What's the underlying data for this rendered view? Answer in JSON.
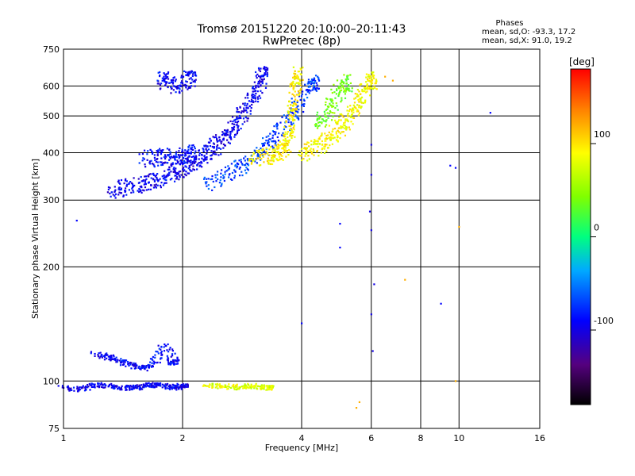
{
  "chart_data": {
    "type": "scatter",
    "title": "Tromsø 20151220 20:10:00–20:11:43",
    "subtitle": "RwPretec (8p)",
    "xlabel": "Frequency [MHz]",
    "ylabel": "Stationary phase Virtual Height [km]",
    "x_scale": "log",
    "y_scale": "log",
    "xlim": [
      1,
      16
    ],
    "ylim": [
      75,
      750
    ],
    "x_ticks": [
      1,
      2,
      4,
      6,
      8,
      10,
      16
    ],
    "x_tick_labels": [
      "1",
      "2",
      "4",
      "6",
      "8",
      "10",
      "16"
    ],
    "x_gridlines": [
      2,
      4,
      6,
      8,
      10
    ],
    "y_ticks": [
      75,
      100,
      200,
      300,
      400,
      500,
      600,
      750
    ],
    "y_tick_labels": [
      "75",
      "100",
      "200",
      "300",
      "400",
      "500",
      "600",
      "750"
    ],
    "y_gridlines": [
      100,
      200,
      300,
      400,
      500,
      600
    ],
    "grid": true,
    "stats": {
      "heading": "Phases",
      "o_line": "mean, sd,O:  -93.3, 17.2",
      "x_line": "mean, sd,X:  91.0, 19.2"
    },
    "colorbar": {
      "label": "[deg]",
      "range": [
        -180,
        180
      ],
      "ticks": [
        -100,
        0,
        100
      ],
      "tick_labels": [
        "-100",
        "0",
        "100"
      ]
    },
    "traces": [
      {
        "kind": "o-ray",
        "phase": -95,
        "points": [
          [
            1.3,
            320
          ],
          [
            1.4,
            322
          ],
          [
            1.5,
            326
          ],
          [
            1.6,
            330
          ],
          [
            1.7,
            336
          ],
          [
            1.8,
            345
          ],
          [
            1.9,
            356
          ],
          [
            2.0,
            362
          ],
          [
            2.1,
            372
          ],
          [
            2.2,
            385
          ],
          [
            2.3,
            398
          ],
          [
            2.4,
            412
          ],
          [
            2.5,
            428
          ],
          [
            2.6,
            446
          ],
          [
            2.7,
            468
          ],
          [
            2.8,
            495
          ],
          [
            2.9,
            525
          ],
          [
            3.0,
            560
          ],
          [
            3.1,
            600
          ],
          [
            3.2,
            640
          ]
        ]
      },
      {
        "kind": "o-ray",
        "phase": -90,
        "points": [
          [
            1.6,
            385
          ],
          [
            1.7,
            388
          ],
          [
            1.8,
            390
          ],
          [
            1.9,
            392
          ],
          [
            2.0,
            395
          ],
          [
            2.1,
            398
          ]
        ]
      },
      {
        "kind": "o-ray",
        "phase": -92,
        "points": [
          [
            1.75,
            640
          ],
          [
            1.8,
            620
          ],
          [
            1.9,
            600
          ],
          [
            2.0,
            610
          ],
          [
            2.1,
            630
          ]
        ]
      },
      {
        "kind": "o-ray-high",
        "phase": -70,
        "points": [
          [
            2.3,
            335
          ],
          [
            2.5,
            345
          ],
          [
            2.7,
            360
          ],
          [
            2.9,
            375
          ],
          [
            3.1,
            395
          ],
          [
            3.3,
            420
          ],
          [
            3.5,
            450
          ],
          [
            3.7,
            490
          ],
          [
            3.9,
            530
          ],
          [
            4.1,
            570
          ],
          [
            4.3,
            610
          ]
        ]
      },
      {
        "kind": "x-ray",
        "phase": 95,
        "points": [
          [
            3.0,
            385
          ],
          [
            3.2,
            390
          ],
          [
            3.4,
            395
          ],
          [
            3.5,
            400
          ],
          [
            3.6,
            410
          ],
          [
            3.7,
            430
          ],
          [
            3.75,
            470
          ],
          [
            3.8,
            520
          ],
          [
            3.85,
            580
          ],
          [
            3.9,
            640
          ]
        ]
      },
      {
        "kind": "x-ray",
        "phase": 90,
        "points": [
          [
            4.0,
            400
          ],
          [
            4.2,
            405
          ],
          [
            4.4,
            415
          ],
          [
            4.6,
            430
          ],
          [
            4.8,
            445
          ],
          [
            5.0,
            465
          ],
          [
            5.2,
            490
          ],
          [
            5.4,
            520
          ],
          [
            5.6,
            555
          ],
          [
            5.8,
            590
          ],
          [
            6.0,
            620
          ]
        ]
      },
      {
        "kind": "x-ray-mid",
        "phase": 40,
        "points": [
          [
            4.4,
            470
          ],
          [
            4.6,
            500
          ],
          [
            4.8,
            540
          ],
          [
            5.0,
            580
          ],
          [
            5.2,
            610
          ]
        ]
      },
      {
        "kind": "e-layer",
        "phase": -95,
        "points": [
          [
            1.0,
            96
          ],
          [
            1.1,
            95
          ],
          [
            1.2,
            98
          ],
          [
            1.3,
            97
          ],
          [
            1.4,
            96
          ],
          [
            1.5,
            96
          ],
          [
            1.6,
            97
          ],
          [
            1.7,
            98
          ],
          [
            1.8,
            97
          ],
          [
            1.9,
            96
          ],
          [
            2.0,
            97
          ]
        ]
      },
      {
        "kind": "e-layer",
        "phase": -90,
        "points": [
          [
            1.2,
            118
          ],
          [
            1.3,
            116
          ],
          [
            1.4,
            112
          ],
          [
            1.5,
            110
          ],
          [
            1.6,
            108
          ],
          [
            1.7,
            112
          ],
          [
            1.8,
            125
          ],
          [
            1.9,
            112
          ]
        ]
      },
      {
        "kind": "e-layer-x",
        "phase": 80,
        "points": [
          [
            2.3,
            97
          ],
          [
            2.5,
            97
          ],
          [
            2.7,
            96
          ],
          [
            2.9,
            97
          ],
          [
            3.1,
            97
          ],
          [
            3.3,
            96
          ]
        ]
      },
      {
        "kind": "scatter",
        "phase": -100,
        "points": [
          [
            6.0,
            150
          ],
          [
            6.0,
            250
          ],
          [
            6.0,
            350
          ],
          [
            6.05,
            120
          ],
          [
            6.1,
            180
          ],
          [
            5.95,
            280
          ],
          [
            6.0,
            420
          ]
        ]
      },
      {
        "kind": "scatter",
        "phase": -90,
        "points": [
          [
            1.08,
            265
          ],
          [
            5.0,
            260
          ],
          [
            5.0,
            225
          ],
          [
            4.0,
            142
          ],
          [
            9.5,
            370
          ],
          [
            9.8,
            365
          ],
          [
            12.0,
            510
          ],
          [
            9.0,
            160
          ]
        ]
      },
      {
        "kind": "scatter",
        "phase": 120,
        "points": [
          [
            5.5,
            85
          ],
          [
            5.6,
            88
          ],
          [
            7.3,
            185
          ],
          [
            9.8,
            100
          ],
          [
            10.0,
            255
          ],
          [
            6.5,
            635
          ],
          [
            6.8,
            620
          ]
        ]
      }
    ]
  }
}
